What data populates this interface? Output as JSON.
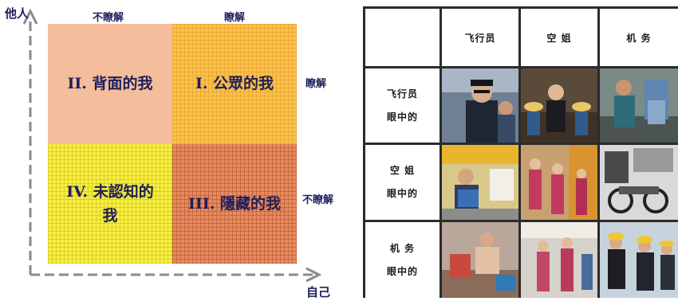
{
  "johari": {
    "y_axis_label": "他人",
    "x_axis_label": "自己",
    "col_labels": [
      "不瞭解",
      "瞭解"
    ],
    "row_labels": [
      "瞭解",
      "不瞭解"
    ],
    "quadrants": [
      {
        "text": "II. 背面的我",
        "color": "#f4bd9b"
      },
      {
        "text": "I. 公眾的我",
        "color": "#f6c34a"
      },
      {
        "text": "IV. 未認知的我",
        "color": "#f5ef3e"
      },
      {
        "text": "III. 隱藏的我",
        "color": "#e58a5c"
      }
    ]
  },
  "table": {
    "col_headers": [
      "飞行员",
      "空 姐",
      "机 务"
    ],
    "row_headers": [
      [
        "飞行员",
        "眼中的"
      ],
      [
        "空    姐",
        "眼中的"
      ],
      [
        "机    务",
        "眼中的"
      ]
    ]
  }
}
